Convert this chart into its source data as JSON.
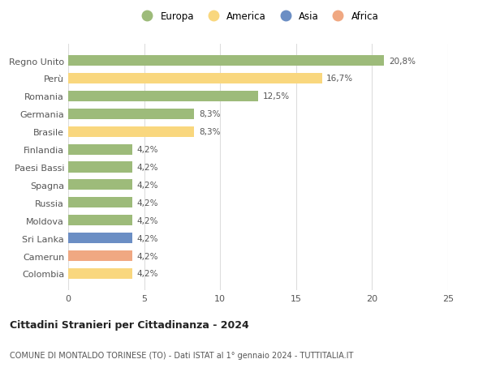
{
  "countries": [
    "Colombia",
    "Camerun",
    "Sri Lanka",
    "Moldova",
    "Russia",
    "Spagna",
    "Paesi Bassi",
    "Finlandia",
    "Brasile",
    "Germania",
    "Romania",
    "Perù",
    "Regno Unito"
  ],
  "values": [
    4.2,
    4.2,
    4.2,
    4.2,
    4.2,
    4.2,
    4.2,
    4.2,
    8.3,
    8.3,
    12.5,
    16.7,
    20.8
  ],
  "labels": [
    "4,2%",
    "4,2%",
    "4,2%",
    "4,2%",
    "4,2%",
    "4,2%",
    "4,2%",
    "4,2%",
    "8,3%",
    "8,3%",
    "12,5%",
    "16,7%",
    "20,8%"
  ],
  "colors": [
    "#f9d77e",
    "#f0a882",
    "#6b8ec4",
    "#9dbb7a",
    "#9dbb7a",
    "#9dbb7a",
    "#9dbb7a",
    "#9dbb7a",
    "#f9d77e",
    "#9dbb7a",
    "#9dbb7a",
    "#f9d77e",
    "#9dbb7a"
  ],
  "legend": [
    {
      "label": "Europa",
      "color": "#9dbb7a"
    },
    {
      "label": "America",
      "color": "#f9d77e"
    },
    {
      "label": "Asia",
      "color": "#6b8ec4"
    },
    {
      "label": "Africa",
      "color": "#f0a882"
    }
  ],
  "title": "Cittadini Stranieri per Cittadinanza - 2024",
  "subtitle": "COMUNE DI MONTALDO TORINESE (TO) - Dati ISTAT al 1° gennaio 2024 - TUTTITALIA.IT",
  "xlim": [
    0,
    25
  ],
  "xticks": [
    0,
    5,
    10,
    15,
    20,
    25
  ],
  "bg_color": "#ffffff",
  "grid_color": "#dddddd",
  "bar_height": 0.6
}
